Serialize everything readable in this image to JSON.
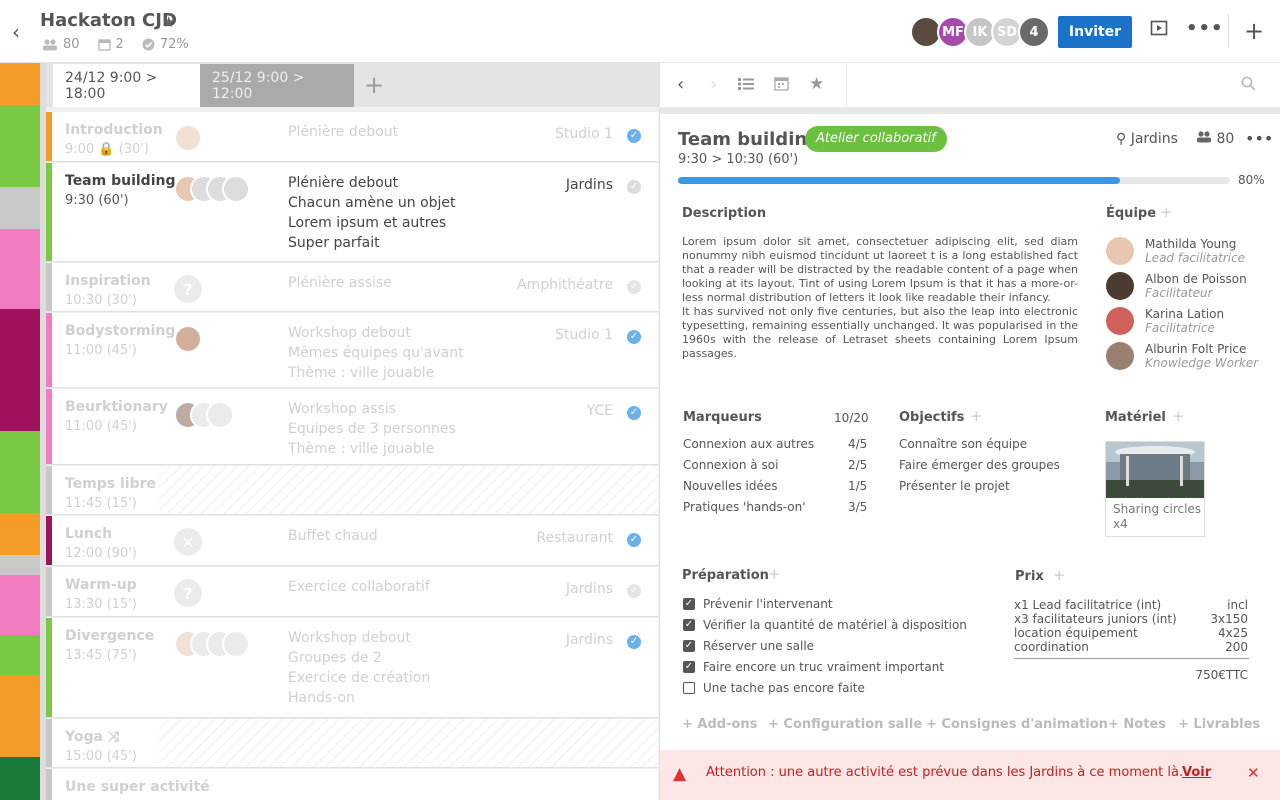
{
  "header": {
    "title": "Hackaton CJD",
    "participants": "80",
    "days": "2",
    "completion": "72%",
    "avatars": [
      {
        "initials": "",
        "color": "#5a4a40"
      },
      {
        "initials": "MF",
        "color": "#a54aa8"
      },
      {
        "initials": "IK",
        "color": "#c6c6c6"
      },
      {
        "initials": "SD",
        "color": "#d4d4d4"
      },
      {
        "initials": "4",
        "color": "#6a6a6a"
      }
    ],
    "invite_label": "Inviter",
    "colors": {
      "accent": "#1a73c9"
    }
  },
  "day_tabs": [
    {
      "label": "24/12 9:00 > 18:00"
    },
    {
      "label": "25/12 9:00 > 12:00"
    }
  ],
  "activities": [
    {
      "name": "Introduction",
      "time": "9:00 🔒 (30')",
      "desc": [
        "Plénière debout"
      ],
      "location": "Studio 1",
      "color": "#f59b27"
    },
    {
      "name": "Team building",
      "time": "9:30 (60')",
      "desc": [
        "Plénière debout",
        "Chacun amène un objet",
        "Lorem ipsum et autres",
        "Super parfait"
      ],
      "location": "Jardins",
      "color": "#7ac943"
    },
    {
      "name": "Inspiration",
      "time": "10:30 (30')",
      "desc": [
        "Plénière assise"
      ],
      "location": "Amphithéatre",
      "color": "#c8c8c8"
    },
    {
      "name": "Bodystorming",
      "time": "11:00 (45')",
      "desc": [
        "Workshop debout",
        "Mêmes équipes qu'avant",
        "Thème : ville jouable"
      ],
      "location": "Studio 1",
      "color": "#f27cbf"
    },
    {
      "name": "Beurktionary",
      "time": "11:00 (45')",
      "desc": [
        "Workshop assis",
        "Equipes de 3 personnes",
        "Thème : ville jouable"
      ],
      "location": "YCE",
      "color": "#f27cbf"
    },
    {
      "name": "Temps libre",
      "time": "11:45 (15')",
      "desc": [],
      "location": "",
      "color": "#c8c8c8"
    },
    {
      "name": "Lunch",
      "time": "12:00 (90')",
      "desc": [
        "Buffet chaud"
      ],
      "location": "Restaurant",
      "color": "#a0135c"
    },
    {
      "name": "Warm-up",
      "time": "13:30 (15')",
      "desc": [
        "Exercice collaboratif"
      ],
      "location": "Jardins",
      "color": "#c8c8c8"
    },
    {
      "name": "Divergence",
      "time": "13:45 (75')",
      "desc": [
        "Workshop debout",
        "Groupes de 2",
        "Exercice de création",
        "Hands-on"
      ],
      "location": "Jardins",
      "color": "#7ac943"
    },
    {
      "name": "Yoga",
      "time": "15:00 (45')",
      "desc": [],
      "location": "",
      "color": "#c8c8c8"
    },
    {
      "name": "Une super activité",
      "time": "",
      "desc": [],
      "location": "",
      "color": "#c8c8c8"
    }
  ],
  "detail": {
    "title": "Team building",
    "tag": "Atelier collaboratif",
    "time": "9:30 > 10:30 (60')",
    "location": "Jardins",
    "count": "80",
    "progress": 80,
    "progress_label": "80%",
    "description_title": "Description",
    "description": [
      "Lorem ipsum dolor sit amet, consectetuer adipiscing elit, sed diam nonummy nibh euismod tincidunt ut laoreet t is a long established fact that a reader will be distracted by the readable content of a page when looking at its layout. Tint of using Lorem Ipsum is that it has a more-or-less normal distribution of letters it look like readable their infancy.",
      "It has survived not only five centuries, but also the leap into electronic typesetting, remaining essentially unchanged. It was popularised in the 1960s with the release of Letraset sheets containing Lorem Ipsum passages."
    ],
    "team_title": "Équipe",
    "team": [
      {
        "name": "Mathilda Young",
        "role": "Lead facilitatrice"
      },
      {
        "name": "Albon de Poisson",
        "role": "Facilitateur"
      },
      {
        "name": "Karina Lation",
        "role": "Facilitatrice"
      },
      {
        "name": "Alburin Folt Price",
        "role": "Knowledge Worker"
      }
    ],
    "markers_title": "Marqueurs",
    "markers_total": "10/20",
    "markers": [
      {
        "label": "Connexion aux autres",
        "value": "4/5"
      },
      {
        "label": "Connexion à soi",
        "value": "2/5"
      },
      {
        "label": "Nouvelles idées",
        "value": "1/5"
      },
      {
        "label": "Pratiques 'hands-on'",
        "value": "3/5"
      }
    ],
    "objectives_title": "Objectifs",
    "objectives": [
      "Connaître son équipe",
      "Faire émerger des groupes",
      "Présenter le projet"
    ],
    "material_title": "Matériel",
    "material": {
      "name": "Sharing circles",
      "qty": "x4"
    },
    "prep_title": "Préparation",
    "prep": [
      {
        "label": "Prévenir l'intervenant",
        "checked": true
      },
      {
        "label": "Vérifier la quantité de matériel à disposition",
        "checked": true
      },
      {
        "label": "Réserver une salle",
        "checked": true
      },
      {
        "label": "Faire encore un truc vraiment important",
        "checked": true
      },
      {
        "label": "Une tache pas encore faite",
        "checked": false
      }
    ],
    "price_title": "Prix",
    "prices": [
      {
        "label": "x1 Lead facilitatrice (int)",
        "value": "incl"
      },
      {
        "label": "x3 facilitateurs juniors (int)",
        "value": "3x150"
      },
      {
        "label": "location équipement",
        "value": "4x25"
      },
      {
        "label": "coordination",
        "value": "200"
      }
    ],
    "price_total": "750€TTC",
    "addons": [
      "+ Add-ons",
      "+ Configuration salle",
      "+ Consignes d'animation",
      "+ Notes",
      "+ Livrables"
    ]
  },
  "alert": {
    "text": "Attention : une autre activité est prévue dans les Jardins à ce moment là.",
    "link": "Voir"
  }
}
